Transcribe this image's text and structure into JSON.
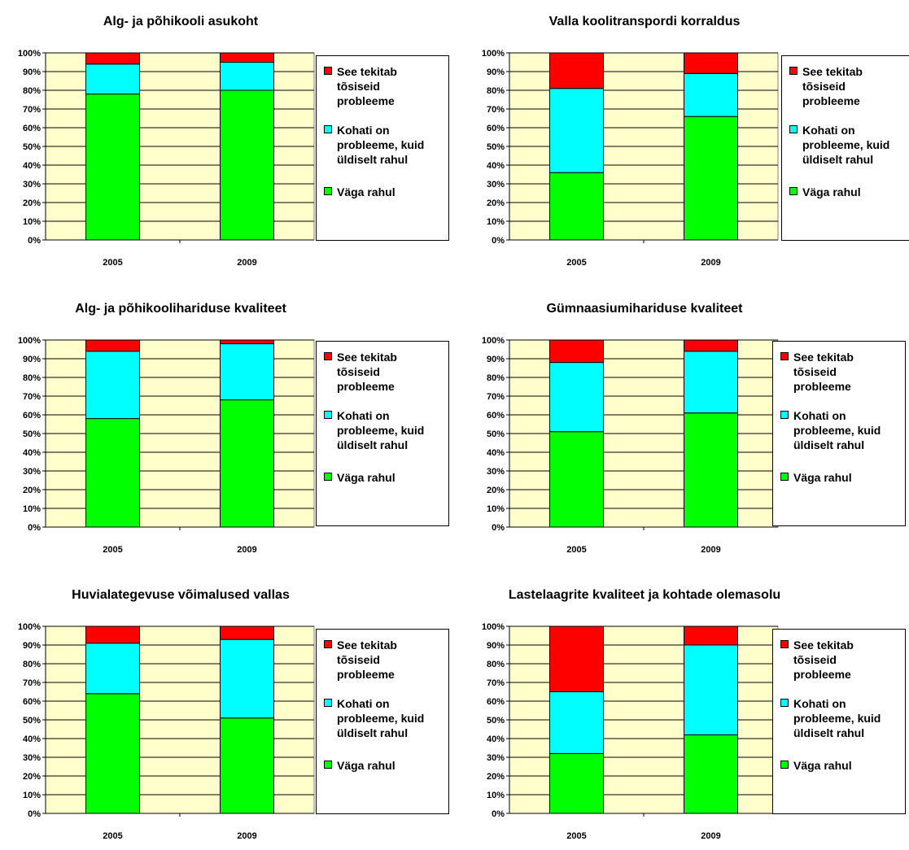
{
  "colors": {
    "plot_bg": "#FFFFCC",
    "see_tekitab": "#FF0000",
    "kohati": "#00FFFF",
    "vaga_rahul": "#00FF00"
  },
  "legend": [
    {
      "label": "See tekitab tõsiseid probleeme",
      "color": "#FF0000"
    },
    {
      "label": "Kohati on probleeme, kuid üldiselt rahul",
      "color": "#00FFFF"
    },
    {
      "label": "Väga rahul",
      "color": "#00FF00"
    }
  ],
  "chart_data": [
    {
      "type": "bar",
      "stacked": "percent",
      "title": "Alg- ja põhikooli asukoht",
      "categories": [
        "2005",
        "2009"
      ],
      "yticks": [
        "0%",
        "10%",
        "20%",
        "30%",
        "40%",
        "50%",
        "60%",
        "70%",
        "80%",
        "90%",
        "100%"
      ],
      "series": [
        {
          "name": "Väga rahul",
          "values": [
            78,
            80
          ]
        },
        {
          "name": "Kohati on probleeme, kuid üldiselt rahul",
          "values": [
            16,
            15
          ]
        },
        {
          "name": "See tekitab tõsiseid probleeme",
          "values": [
            6,
            5
          ]
        }
      ]
    },
    {
      "type": "bar",
      "stacked": "percent",
      "title": "Valla koolitranspordi korraldus",
      "categories": [
        "2005",
        "2009"
      ],
      "yticks": [
        "0%",
        "10%",
        "20%",
        "30%",
        "40%",
        "50%",
        "60%",
        "70%",
        "80%",
        "90%",
        "100%"
      ],
      "series": [
        {
          "name": "Väga rahul",
          "values": [
            36,
            66
          ]
        },
        {
          "name": "Kohati on probleeme, kuid üldiselt rahul",
          "values": [
            45,
            23
          ]
        },
        {
          "name": "See tekitab tõsiseid probleeme",
          "values": [
            19,
            11
          ]
        }
      ]
    },
    {
      "type": "bar",
      "stacked": "percent",
      "title": "Alg- ja põhikoolihariduse kvaliteet",
      "categories": [
        "2005",
        "2009"
      ],
      "yticks": [
        "0%",
        "10%",
        "20%",
        "30%",
        "40%",
        "50%",
        "60%",
        "70%",
        "80%",
        "90%",
        "100%"
      ],
      "series": [
        {
          "name": "Väga rahul",
          "values": [
            58,
            68
          ]
        },
        {
          "name": "Kohati on probleeme, kuid üldiselt rahul",
          "values": [
            36,
            30
          ]
        },
        {
          "name": "See tekitab tõsiseid probleeme",
          "values": [
            6,
            2
          ]
        }
      ]
    },
    {
      "type": "bar",
      "stacked": "percent",
      "title": "Gümnaasiumihariduse kvaliteet",
      "categories": [
        "2005",
        "2009"
      ],
      "yticks": [
        "0%",
        "10%",
        "20%",
        "30%",
        "40%",
        "50%",
        "60%",
        "70%",
        "80%",
        "90%",
        "100%"
      ],
      "series": [
        {
          "name": "Väga rahul",
          "values": [
            51,
            61
          ]
        },
        {
          "name": "Kohati on probleeme, kuid üldiselt rahul",
          "values": [
            37,
            33
          ]
        },
        {
          "name": "See tekitab tõsiseid probleeme",
          "values": [
            12,
            6
          ]
        }
      ]
    },
    {
      "type": "bar",
      "stacked": "percent",
      "title": "Huvialategevuse võimalused vallas",
      "categories": [
        "2005",
        "2009"
      ],
      "yticks": [
        "0%",
        "10%",
        "20%",
        "30%",
        "40%",
        "50%",
        "60%",
        "70%",
        "80%",
        "90%",
        "100%"
      ],
      "series": [
        {
          "name": "Väga rahul",
          "values": [
            64,
            51
          ]
        },
        {
          "name": "Kohati on probleeme, kuid üldiselt rahul",
          "values": [
            27,
            42
          ]
        },
        {
          "name": "See tekitab tõsiseid probleeme",
          "values": [
            9,
            7
          ]
        }
      ]
    },
    {
      "type": "bar",
      "stacked": "percent",
      "title": "Lastelaagrite kvaliteet ja kohtade olemasolu",
      "categories": [
        "2005",
        "2009"
      ],
      "yticks": [
        "0%",
        "10%",
        "20%",
        "30%",
        "40%",
        "50%",
        "60%",
        "70%",
        "80%",
        "90%",
        "100%"
      ],
      "series": [
        {
          "name": "Väga rahul",
          "values": [
            32,
            42
          ]
        },
        {
          "name": "Kohati on probleeme, kuid üldiselt rahul",
          "values": [
            33,
            48
          ]
        },
        {
          "name": "See tekitab tõsiseid probleeme",
          "values": [
            35,
            10
          ]
        }
      ]
    }
  ]
}
